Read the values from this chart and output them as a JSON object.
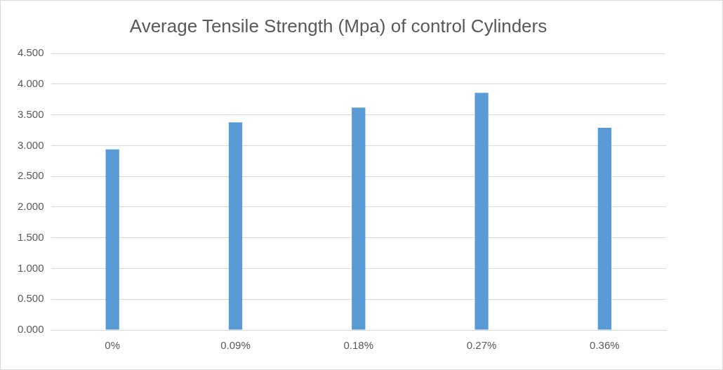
{
  "chart_data": {
    "type": "bar",
    "title": "Average Tensile Strength (Mpa) of control Cylinders",
    "categories": [
      "0%",
      "0.09%",
      "0.18%",
      "0.27%",
      "0.36%"
    ],
    "values": [
      2.94,
      3.38,
      3.62,
      3.86,
      3.29
    ],
    "color": "#5b9bd5",
    "ylim": [
      0,
      4.5
    ],
    "yticks": [
      {
        "value": 0,
        "label": "0.000"
      },
      {
        "value": 0.5,
        "label": "0.500"
      },
      {
        "value": 1,
        "label": "1.000"
      },
      {
        "value": 1.5,
        "label": "1.500"
      },
      {
        "value": 2,
        "label": "2.000"
      },
      {
        "value": 2.5,
        "label": "2.500"
      },
      {
        "value": 3,
        "label": "3.000"
      },
      {
        "value": 3.5,
        "label": "3.500"
      },
      {
        "value": 4,
        "label": "4.000"
      },
      {
        "value": 4.5,
        "label": "4.500"
      }
    ],
    "grid": "y",
    "legend": false
  }
}
